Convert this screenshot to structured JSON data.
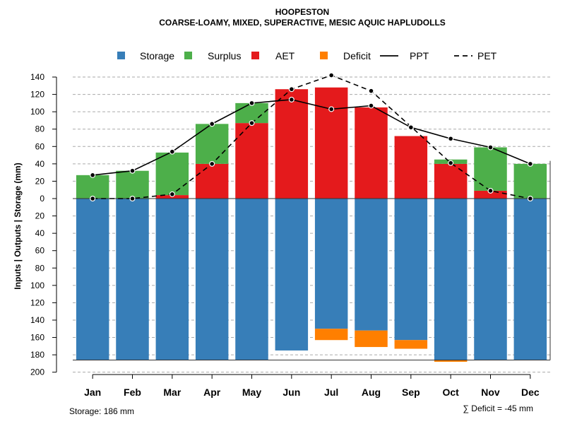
{
  "chart_data": {
    "type": "bar",
    "title": "HOOPESTON",
    "subtitle": "COARSE-LOAMY, MIXED, SUPERACTIVE, MESIC AQUIC HAPLUDOLLS",
    "ylabel": "Inputs | Outputs | Storage    (mm)",
    "categories": [
      "Jan",
      "Feb",
      "Mar",
      "Apr",
      "May",
      "Jun",
      "Jul",
      "Aug",
      "Sep",
      "Oct",
      "Nov",
      "Dec"
    ],
    "ylim": [
      -200,
      140
    ],
    "yticks": [
      140,
      120,
      100,
      80,
      60,
      40,
      20,
      0,
      -20,
      -40,
      -60,
      -80,
      -100,
      -120,
      -140,
      -160,
      -180,
      -200
    ],
    "ytick_labels": [
      "140",
      "120",
      "100",
      "80",
      "60",
      "40",
      "20",
      "0",
      "20",
      "40",
      "60",
      "80",
      "100",
      "120",
      "140",
      "160",
      "180",
      "200"
    ],
    "grid": true,
    "legend_position": "top",
    "legend": [
      {
        "key": "storage",
        "label": "Storage",
        "type": "square",
        "color": "#377EB8"
      },
      {
        "key": "surplus",
        "label": "Surplus",
        "type": "square",
        "color": "#4DAF4A"
      },
      {
        "key": "aet",
        "label": "AET",
        "type": "square",
        "color": "#E41A1C"
      },
      {
        "key": "deficit",
        "label": "Deficit",
        "type": "square",
        "color": "#FF7F00"
      },
      {
        "key": "ppt",
        "label": "PPT",
        "type": "line-solid",
        "color": "#000000"
      },
      {
        "key": "pet",
        "label": "PET",
        "type": "line-dashed",
        "color": "#000000"
      }
    ],
    "series": [
      {
        "name": "Storage",
        "color": "#377EB8",
        "values": [
          186,
          186,
          186,
          186,
          186,
          175,
          150,
          152,
          163,
          186,
          186,
          186
        ]
      },
      {
        "name": "Surplus",
        "color": "#4DAF4A",
        "values": [
          27,
          32,
          49,
          46,
          23,
          0,
          0,
          0,
          0,
          5,
          50,
          40
        ]
      },
      {
        "name": "AET",
        "color": "#E41A1C",
        "values": [
          0,
          0,
          4,
          40,
          87,
          126,
          128,
          105,
          72,
          40,
          9,
          0
        ]
      },
      {
        "name": "Deficit",
        "color": "#FF7F00",
        "values": [
          0,
          0,
          0,
          0,
          0,
          0,
          -13,
          -19,
          -10,
          -2,
          0,
          0
        ]
      },
      {
        "name": "PPT",
        "color": "#000000",
        "values": [
          27,
          32,
          54,
          86,
          110,
          114,
          103,
          107,
          82,
          69,
          59,
          40
        ]
      },
      {
        "name": "PET",
        "color": "#000000",
        "values": [
          0,
          0,
          5,
          40,
          87,
          126,
          142,
          124,
          83,
          41,
          9,
          0
        ]
      }
    ],
    "storage_capacity": 186,
    "storage_note": "Storage: 186 mm",
    "deficit_sum_label": "∑ Deficit = -45 mm"
  }
}
